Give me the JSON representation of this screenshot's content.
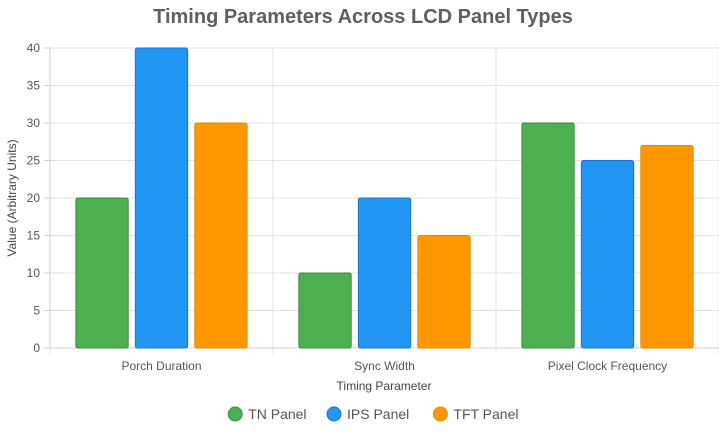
{
  "chart_data": {
    "type": "bar",
    "title": "Timing Parameters Across LCD Panel Types",
    "xlabel": "Timing Parameter",
    "ylabel": "Value (Arbitrary Units)",
    "categories": [
      "Porch Duration",
      "Sync Width",
      "Pixel Clock Frequency"
    ],
    "series": [
      {
        "name": "TN Panel",
        "values": [
          20,
          10,
          30
        ],
        "color": "#4caf50",
        "border": "#3d8b40"
      },
      {
        "name": "IPS Panel",
        "values": [
          40,
          20,
          25
        ],
        "color": "#2196f3",
        "border": "#1976d2"
      },
      {
        "name": "TFT Panel",
        "values": [
          30,
          15,
          27
        ],
        "color": "#ff9800",
        "border": "#e68a00"
      }
    ],
    "ylim": [
      0,
      40
    ],
    "yticks": [
      0,
      5,
      10,
      15,
      20,
      25,
      30,
      35,
      40
    ],
    "grid": true,
    "legend": "bottom"
  }
}
